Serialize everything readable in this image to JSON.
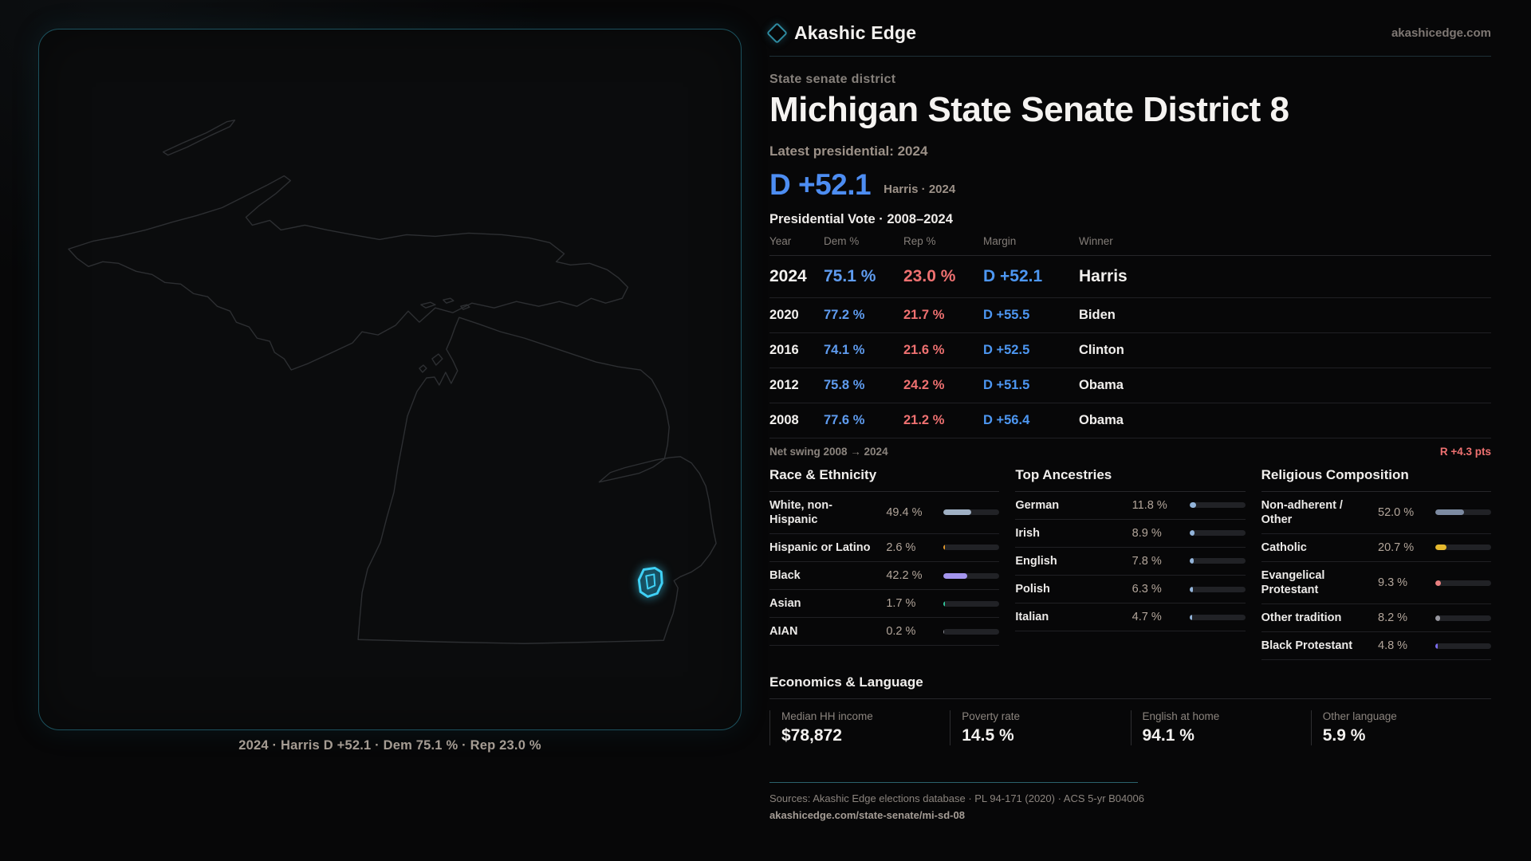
{
  "brand": {
    "name": "Akashic Edge",
    "domain": "akashicedge.com"
  },
  "page": {
    "eyebrow": "State senate district",
    "title": "Michigan State Senate District 8",
    "latest_label": "Latest presidential: 2024",
    "headline_margin": "D +52.1",
    "headline_context": "Harris · 2024",
    "table_title": "Presidential Vote · 2008–2024"
  },
  "results": {
    "columns": {
      "year": "Year",
      "dem": "Dem %",
      "rep": "Rep %",
      "margin": "Margin",
      "winner": "Winner"
    },
    "rows": [
      {
        "year": "2024",
        "dem": "75.1 %",
        "rep": "23.0 %",
        "margin": "D +52.1",
        "winner": "Harris"
      },
      {
        "year": "2020",
        "dem": "77.2 %",
        "rep": "21.7 %",
        "margin": "D +55.5",
        "winner": "Biden"
      },
      {
        "year": "2016",
        "dem": "74.1 %",
        "rep": "21.6 %",
        "margin": "D +52.5",
        "winner": "Clinton"
      },
      {
        "year": "2012",
        "dem": "75.8 %",
        "rep": "24.2 %",
        "margin": "D +51.5",
        "winner": "Obama"
      },
      {
        "year": "2008",
        "dem": "77.6 %",
        "rep": "21.2 %",
        "margin": "D +56.4",
        "winner": "Obama"
      }
    ],
    "net_swing_label": "Net swing 2008 → 2024",
    "net_swing_value": "R +4.3 pts"
  },
  "demographics": [
    {
      "title": "Race & Ethnicity",
      "rows": [
        {
          "label": "White, non-Hispanic",
          "value": "49.4 %",
          "pct": 49.4,
          "color": "#9fb0c4"
        },
        {
          "label": "Hispanic or Latino",
          "value": "2.6 %",
          "pct": 2.6,
          "color": "#e39a2c"
        },
        {
          "label": "Black",
          "value": "42.2 %",
          "pct": 42.2,
          "color": "#a495ee"
        },
        {
          "label": "Asian",
          "value": "1.7 %",
          "pct": 1.7,
          "color": "#31c79c"
        },
        {
          "label": "AIAN",
          "value": "0.2 %",
          "pct": 0.2,
          "color": "#8d8d95"
        }
      ]
    },
    {
      "title": "Top Ancestries",
      "rows": [
        {
          "label": "German",
          "value": "11.8 %",
          "pct": 11.8,
          "color": "#93b4da"
        },
        {
          "label": "Irish",
          "value": "8.9 %",
          "pct": 8.9,
          "color": "#93b4da"
        },
        {
          "label": "English",
          "value": "7.8 %",
          "pct": 7.8,
          "color": "#93b4da"
        },
        {
          "label": "Polish",
          "value": "6.3 %",
          "pct": 6.3,
          "color": "#93b4da"
        },
        {
          "label": "Italian",
          "value": "4.7 %",
          "pct": 4.7,
          "color": "#93b4da"
        }
      ]
    },
    {
      "title": "Religious Composition",
      "rows": [
        {
          "label": "Non-adherent / Other",
          "value": "52.0 %",
          "pct": 52.0,
          "color": "#7c8aa1"
        },
        {
          "label": "Catholic",
          "value": "20.7 %",
          "pct": 20.7,
          "color": "#e5b92e"
        },
        {
          "label": "Evangelical Protestant",
          "value": "9.3 %",
          "pct": 9.3,
          "color": "#e87f7f"
        },
        {
          "label": "Other tradition",
          "value": "8.2 %",
          "pct": 8.2,
          "color": "#97979f"
        },
        {
          "label": "Black Protestant",
          "value": "4.8 %",
          "pct": 4.8,
          "color": "#7a6bec"
        }
      ]
    }
  ],
  "economics": {
    "title": "Economics & Language",
    "stats": [
      {
        "label": "Median HH income",
        "value": "$78,872"
      },
      {
        "label": "Poverty rate",
        "value": "14.5 %"
      },
      {
        "label": "English at home",
        "value": "94.1 %"
      },
      {
        "label": "Other language",
        "value": "5.9 %"
      }
    ]
  },
  "map": {
    "caption": "2024 · Harris D +52.1 · Dem 75.1 % · Rep 23.0 %"
  },
  "footer": {
    "sources": "Sources: Akashic Edge elections database · PL 94-171 (2020) · ACS 5-yr B04006",
    "url": "akashicedge.com/state-senate/mi-sd-08"
  }
}
